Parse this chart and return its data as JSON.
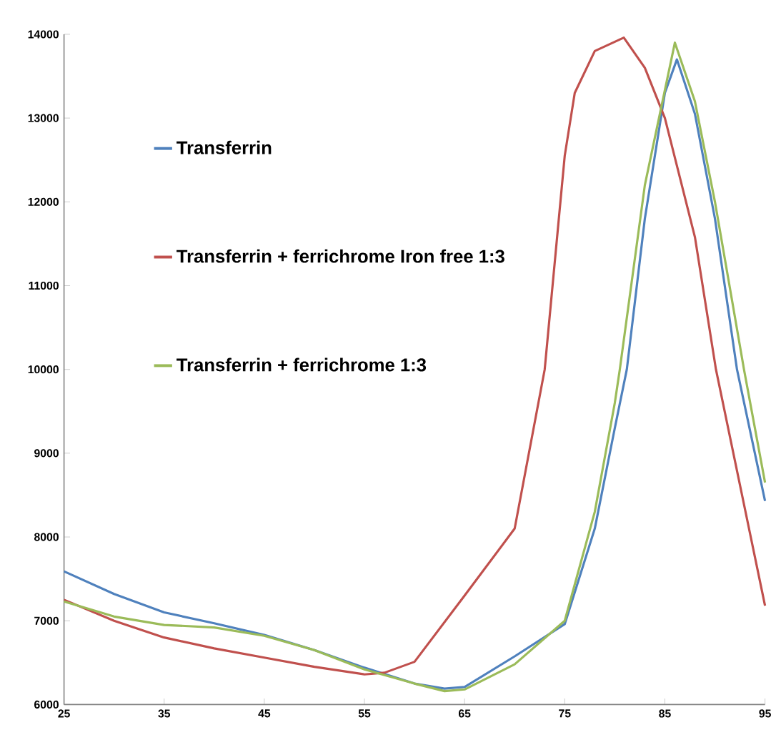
{
  "chart_data": {
    "type": "line",
    "xlim": [
      25,
      95
    ],
    "ylim": [
      6000,
      14000
    ],
    "xticks": [
      25,
      35,
      45,
      55,
      65,
      75,
      85,
      95
    ],
    "yticks": [
      6000,
      7000,
      8000,
      9000,
      10000,
      11000,
      12000,
      13000,
      14000
    ],
    "grid": false,
    "legend": "left",
    "marker": "none",
    "line_style": "solid",
    "series": [
      {
        "name": "Transferrin",
        "color": "#4f81bd",
        "x": [
          25,
          30,
          35,
          40,
          45,
          50,
          55,
          60,
          63,
          65,
          70,
          75,
          78,
          80,
          81.2,
          83,
          85,
          86.2,
          88,
          90,
          92.2,
          95
        ],
        "values": [
          7590,
          7320,
          7100,
          6970,
          6830,
          6650,
          6440,
          6250,
          6190,
          6210,
          6575,
          6960,
          8100,
          9300,
          10000,
          11800,
          13300,
          13700,
          13050,
          11800,
          10000,
          8430
        ]
      },
      {
        "name": "Transferrin + ferrichrome Iron free 1:3",
        "color": "#c0504d",
        "x": [
          25,
          30,
          35,
          40,
          45,
          50,
          55,
          57,
          60,
          65,
          70,
          73,
          75,
          76,
          78,
          80.9,
          83,
          85,
          88,
          90.1,
          95
        ],
        "values": [
          7250,
          7000,
          6800,
          6670,
          6560,
          6450,
          6360,
          6380,
          6510,
          7300,
          8100,
          10000,
          12550,
          13300,
          13800,
          13960,
          13600,
          13000,
          11580,
          10000,
          7180
        ]
      },
      {
        "name": "Transferrin + ferrichrome 1:3",
        "color": "#9bbb59",
        "x": [
          25,
          30,
          35,
          40,
          45,
          50,
          55,
          60,
          63,
          65,
          70,
          75,
          78,
          80,
          80.5,
          83,
          86,
          88,
          90,
          92.9,
          95
        ],
        "values": [
          7230,
          7050,
          6950,
          6920,
          6820,
          6650,
          6420,
          6250,
          6160,
          6180,
          6480,
          7000,
          8300,
          9600,
          10000,
          12200,
          13900,
          13200,
          12000,
          10000,
          8650
        ]
      }
    ]
  }
}
